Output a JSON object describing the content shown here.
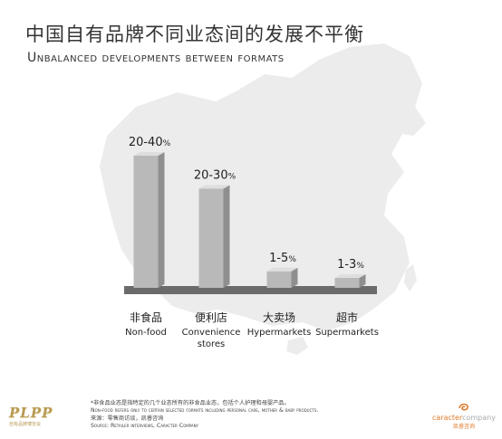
{
  "title_zh": "中国自有品牌不同业态间的发展不平衡",
  "title_en": "Unbalanced developments between formats",
  "chart_data": {
    "type": "bar",
    "categories": [
      {
        "zh": "非食品",
        "en": "Non-food"
      },
      {
        "zh": "便利店",
        "en": "Convenience stores"
      },
      {
        "zh": "大卖场",
        "en": "Hypermarkets"
      },
      {
        "zh": "超市",
        "en": "Supermarkets"
      }
    ],
    "values": [
      40,
      30,
      5,
      3
    ],
    "labels": [
      {
        "main": "20-40",
        "unit": "%"
      },
      {
        "main": "20-30",
        "unit": "%"
      },
      {
        "main": "1-5",
        "unit": "%"
      },
      {
        "main": "1-3",
        "unit": "%"
      }
    ],
    "ylim": [
      0,
      40
    ],
    "bar_color": "#b9b9b9",
    "bar_side_color": "#8f8f8f",
    "bar_top_color": "#dedede",
    "base_color": "#6b6b6b",
    "map_color": "#ececec"
  },
  "footnote": {
    "line1": "*非食品业态是指特定的几个业态所有的非食品业态，包括个人护理和母婴产品。",
    "line2": "Non-food refers only to certain selected formats including personal care, mother & baby products.",
    "line3": "来源：零售商访谈，凯睿咨询",
    "line4": "Source: Retailer interviews, Caracter Company"
  },
  "logo_left": {
    "mark": "PLPP",
    "tag": "自有品牌博览会"
  },
  "logo_right": {
    "name_a": "caracter",
    "name_b": "company",
    "zh": "凯睿咨询"
  }
}
